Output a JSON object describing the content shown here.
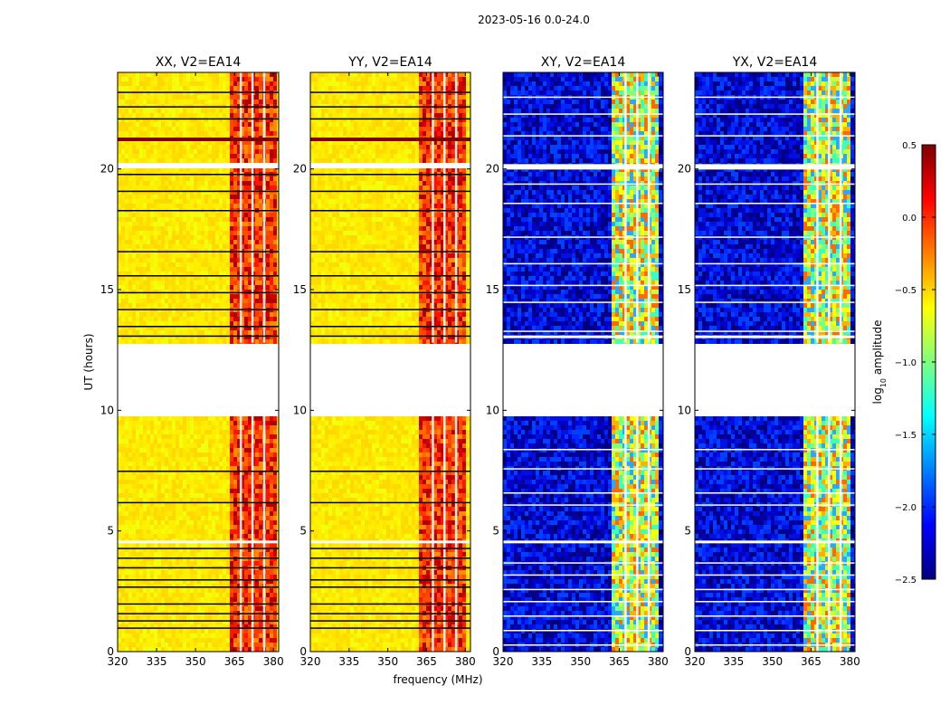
{
  "figure": {
    "suptitle": "2023-05-16 0.0-24.0"
  },
  "chart_data": {
    "type": "heatmap",
    "title": "2023-05-16 0.0-24.0",
    "xlabel": "frequency (MHz)",
    "ylabel": "UT (hours)",
    "xlim": [
      320,
      382
    ],
    "ylim": [
      0,
      24
    ],
    "xticks": [
      320,
      335,
      350,
      365,
      380
    ],
    "yticks": [
      0,
      5,
      10,
      15,
      20
    ],
    "data_gap_hours": [
      9.8,
      12.8
    ],
    "band_gap_start_mhz": 376,
    "panels": [
      {
        "title": "XX, V2=EA14",
        "kind": "parallel",
        "bright_band_mhz": [
          362,
          380
        ]
      },
      {
        "title": "YY, V2=EA14",
        "kind": "parallel",
        "bright_band_mhz": [
          362,
          380
        ]
      },
      {
        "title": "XY, V2=EA14",
        "kind": "cross",
        "bright_band_mhz": [
          362,
          380
        ]
      },
      {
        "title": "YX, V2=EA14",
        "kind": "cross",
        "bright_band_mhz": [
          362,
          380
        ]
      }
    ],
    "colorbar": {
      "label": "log10 amplitude",
      "label_prefix": "log",
      "label_subscript": "10",
      "label_suffix": " amplitude",
      "range": [
        -2.5,
        0.5
      ],
      "ticks": [
        "0.5",
        "0.0",
        "−0.5",
        "−1.0",
        "−1.5",
        "−2.0",
        "−2.5"
      ],
      "colors": [
        "#00007f",
        "#0000ff",
        "#007fff",
        "#00ffff",
        "#7fff7f",
        "#ffff00",
        "#ff7f00",
        "#ff0000",
        "#7f0000"
      ]
    }
  }
}
